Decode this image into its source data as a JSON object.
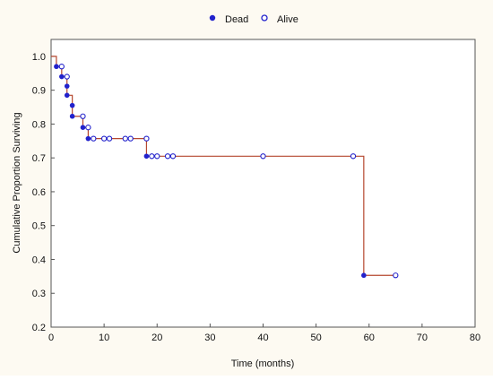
{
  "chart_data": {
    "type": "line",
    "subtype": "kaplan-meier step",
    "xlabel": "Time (months)",
    "ylabel": "Cumulative Proportion Surviving",
    "xlim": [
      0,
      80
    ],
    "ylim": [
      0.2,
      1.05
    ],
    "x_ticks": [
      "0",
      "10",
      "20",
      "30",
      "40",
      "50",
      "60",
      "70",
      "80"
    ],
    "y_ticks": [
      "0.2",
      "0.3",
      "0.4",
      "0.5",
      "0.6",
      "0.7",
      "0.8",
      "0.9",
      "1.0"
    ],
    "grid": false,
    "legend_position": "top",
    "line_color": "#b5472e",
    "background_color": "#fdfaf2",
    "step_curve": [
      [
        0,
        1.0
      ],
      [
        1,
        0.97
      ],
      [
        2,
        0.94
      ],
      [
        3,
        0.912
      ],
      [
        3,
        0.885
      ],
      [
        4,
        0.855
      ],
      [
        4,
        0.823
      ],
      [
        6,
        0.79
      ],
      [
        7,
        0.757
      ],
      [
        18,
        0.705
      ],
      [
        59,
        0.353
      ],
      [
        65,
        0.353
      ]
    ],
    "series": [
      {
        "name": "Dead",
        "marker": "filled",
        "color": "#2222cc",
        "points": [
          [
            1,
            0.97
          ],
          [
            2,
            0.94
          ],
          [
            3,
            0.912
          ],
          [
            3,
            0.885
          ],
          [
            4,
            0.855
          ],
          [
            4,
            0.823
          ],
          [
            6,
            0.79
          ],
          [
            7,
            0.757
          ],
          [
            18,
            0.705
          ],
          [
            59,
            0.353
          ]
        ]
      },
      {
        "name": "Alive",
        "marker": "open",
        "color": "#2222cc",
        "points": [
          [
            2,
            0.97
          ],
          [
            3,
            0.94
          ],
          [
            6,
            0.823
          ],
          [
            7,
            0.79
          ],
          [
            8,
            0.757
          ],
          [
            10,
            0.757
          ],
          [
            11,
            0.757
          ],
          [
            14,
            0.757
          ],
          [
            15,
            0.757
          ],
          [
            18,
            0.757
          ],
          [
            19,
            0.705
          ],
          [
            20,
            0.705
          ],
          [
            22,
            0.705
          ],
          [
            23,
            0.705
          ],
          [
            40,
            0.705
          ],
          [
            57,
            0.705
          ],
          [
            65,
            0.353
          ]
        ]
      }
    ]
  }
}
